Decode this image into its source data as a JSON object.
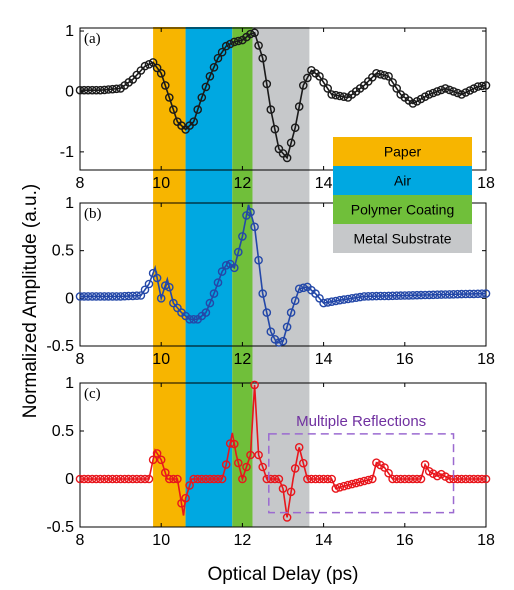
{
  "chart_data": [
    {
      "type": "line",
      "panel": "(a)",
      "xlabel": "",
      "ylabel": "",
      "xlim": [
        8,
        18
      ],
      "ylim": [
        -1.3,
        1.05
      ],
      "xticks": [
        "8",
        "10",
        "12",
        "14",
        "16",
        "18"
      ],
      "yticks": [
        "1",
        "0",
        "-1"
      ],
      "ytick_values": [
        1,
        0,
        -1
      ],
      "color": "#1a1a1a",
      "marker": "circle",
      "x": [
        8.0,
        8.5,
        9.0,
        9.3,
        9.6,
        9.8,
        10.0,
        10.2,
        10.4,
        10.6,
        10.8,
        11.0,
        11.2,
        11.4,
        11.6,
        11.8,
        12.0,
        12.2,
        12.3,
        12.5,
        12.7,
        12.9,
        13.1,
        13.3,
        13.5,
        13.7,
        13.9,
        14.2,
        14.6,
        15.0,
        15.3,
        15.6,
        15.9,
        16.2,
        16.6,
        17.0,
        17.4,
        17.8,
        18.0
      ],
      "y": [
        0.02,
        0.02,
        0.05,
        0.2,
        0.42,
        0.48,
        0.3,
        -0.1,
        -0.5,
        -0.63,
        -0.5,
        -0.1,
        0.25,
        0.55,
        0.75,
        0.82,
        0.85,
        0.95,
        0.97,
        0.55,
        -0.3,
        -0.95,
        -1.1,
        -0.6,
        0.1,
        0.35,
        0.25,
        -0.05,
        -0.1,
        0.1,
        0.3,
        0.25,
        -0.05,
        -0.2,
        -0.05,
        0.05,
        -0.05,
        0.08,
        0.1
      ]
    },
    {
      "type": "line",
      "panel": "(b)",
      "xlabel": "",
      "ylabel": "",
      "xlim": [
        8,
        18
      ],
      "ylim": [
        -0.5,
        1.0
      ],
      "xticks": [
        "8",
        "10",
        "12",
        "14",
        "16",
        "18"
      ],
      "yticks": [
        "1",
        "0.5",
        "0",
        "-0.5"
      ],
      "ytick_values": [
        1,
        0.5,
        0,
        -0.5
      ],
      "color": "#2448a8",
      "marker": "circle",
      "x": [
        8.0,
        9.0,
        9.5,
        9.7,
        9.85,
        10.0,
        10.15,
        10.3,
        10.5,
        10.7,
        10.9,
        11.1,
        11.3,
        11.5,
        11.65,
        11.8,
        12.0,
        12.15,
        12.3,
        12.5,
        12.7,
        12.85,
        13.0,
        13.2,
        13.4,
        13.6,
        13.8,
        14.0,
        14.4,
        15.0,
        16.0,
        17.0,
        18.0
      ],
      "y": [
        0.02,
        0.02,
        0.03,
        0.15,
        0.32,
        0.0,
        0.2,
        -0.05,
        -0.15,
        -0.22,
        -0.22,
        -0.15,
        0.05,
        0.28,
        0.38,
        0.32,
        0.65,
        0.98,
        0.75,
        0.05,
        -0.35,
        -0.47,
        -0.45,
        -0.15,
        0.1,
        0.12,
        0.05,
        -0.05,
        -0.02,
        0.02,
        0.03,
        0.04,
        0.05
      ]
    },
    {
      "type": "line",
      "panel": "(c)",
      "xlabel": "Optical Delay (ps)",
      "ylabel": "",
      "xlim": [
        8,
        18
      ],
      "ylim": [
        -0.5,
        1.0
      ],
      "xticks": [
        "8",
        "10",
        "12",
        "14",
        "16",
        "18"
      ],
      "yticks": [
        "1",
        "0.5",
        "0",
        "-0.5"
      ],
      "ytick_values": [
        1,
        0.5,
        0,
        -0.5
      ],
      "color": "#e8161c",
      "marker": "circle",
      "x": [
        8.0,
        9.7,
        9.85,
        10.0,
        10.15,
        10.4,
        10.55,
        10.6,
        10.75,
        11.5,
        11.6,
        11.75,
        11.85,
        12.0,
        12.2,
        12.3,
        12.4,
        12.6,
        12.9,
        13.0,
        13.1,
        13.25,
        13.4,
        13.6,
        14.2,
        14.3,
        14.45,
        15.2,
        15.3,
        15.5,
        15.7,
        16.4,
        16.5,
        16.6,
        16.8,
        16.9,
        17.1,
        18.0
      ],
      "y": [
        0.0,
        0.0,
        0.3,
        0.2,
        0.0,
        0.0,
        -0.38,
        -0.2,
        0.0,
        0.0,
        0.15,
        0.48,
        0.25,
        0.0,
        0.25,
        0.98,
        0.25,
        0.0,
        0.0,
        -0.1,
        -0.4,
        0.0,
        0.33,
        0.0,
        0.0,
        -0.1,
        -0.08,
        0.0,
        0.17,
        0.12,
        0.0,
        0.0,
        0.15,
        0.08,
        0.03,
        0.05,
        0.0,
        0.0
      ]
    }
  ],
  "shared": {
    "ylabel": "Normalized Amplitude (a.u.)",
    "regions": [
      {
        "label": "Paper",
        "x0": 9.8,
        "x1": 10.6,
        "color": "#f7b500"
      },
      {
        "label": "Air",
        "x0": 10.6,
        "x1": 11.75,
        "color": "#00a8e1"
      },
      {
        "label": "Polymer Coating",
        "x0": 11.75,
        "x1": 12.25,
        "color": "#70bf3a"
      },
      {
        "label": "Metal Substrate",
        "x0": 12.25,
        "x1": 13.65,
        "color": "#c6c8ca"
      }
    ],
    "annotation": {
      "text": "Multiple Reflections",
      "color": "#7030a0",
      "x0": 12.65,
      "x1": 17.2,
      "y0": -0.35,
      "y1": 0.47
    }
  }
}
